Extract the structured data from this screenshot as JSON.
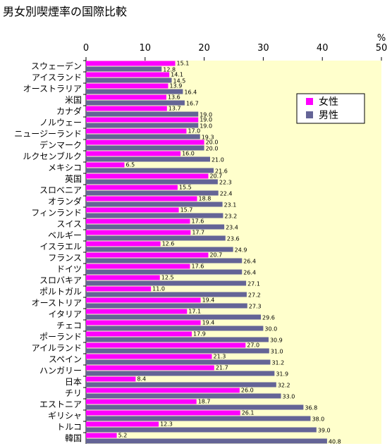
{
  "chart_data": {
    "type": "bar",
    "orientation": "horizontal",
    "title": "男女別喫煙率の国際比較",
    "xlabel": "",
    "ylabel": "",
    "unit": "%",
    "xlim": [
      0,
      50
    ],
    "xticks": [
      0,
      10,
      20,
      30,
      40,
      50
    ],
    "grid": false,
    "legend_position": "top-right",
    "categories": [
      "スウェーデン",
      "アイスランド",
      "オーストラリア",
      "米国",
      "カナダ",
      "ノルウェー",
      "ニュージーランド",
      "デンマーク",
      "ルクセンブルク",
      "メキシコ",
      "英国",
      "スロベニア",
      "オランダ",
      "フィンランド",
      "スイス",
      "ベルギー",
      "イスラエル",
      "フランス",
      "ドイツ",
      "スロバキア",
      "ポルトガル",
      "オーストリア",
      "イタリア",
      "チェコ",
      "ポーランド",
      "アイルランド",
      "スペイン",
      "ハンガリー",
      "日本",
      "チリ",
      "エストニア",
      "ギリシャ",
      "トルコ",
      "韓国"
    ],
    "series": [
      {
        "name": "女性",
        "color": "#ff00ff",
        "values": [
          15.1,
          14.1,
          13.9,
          13.6,
          13.7,
          19.0,
          17.0,
          20.0,
          16.0,
          6.5,
          20.7,
          15.5,
          18.8,
          15.7,
          17.6,
          17.7,
          12.6,
          20.7,
          17.6,
          12.5,
          11.0,
          19.4,
          17.1,
          19.4,
          17.9,
          27.0,
          21.3,
          21.7,
          8.4,
          26.0,
          18.7,
          26.1,
          12.3,
          5.2
        ]
      },
      {
        "name": "男性",
        "color": "#646496",
        "values": [
          12.8,
          14.5,
          16.4,
          16.7,
          19.0,
          19.0,
          19.3,
          20.0,
          21.0,
          21.6,
          22.3,
          22.4,
          23.1,
          23.2,
          23.4,
          23.6,
          24.9,
          26.4,
          26.4,
          27.1,
          27.2,
          27.3,
          29.6,
          30.0,
          30.9,
          31.0,
          31.2,
          31.9,
          32.2,
          33.0,
          36.8,
          38.0,
          39.0,
          40.8
        ]
      }
    ]
  },
  "colors": {
    "plot_background": "#ffffcc",
    "male_bar": "#646496",
    "female_bar": "#ff00ff"
  }
}
